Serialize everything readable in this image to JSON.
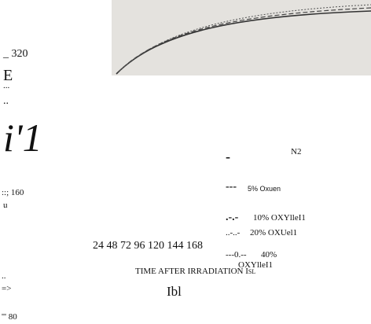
{
  "left_axis": [
    "_ 320",
    "E",
    "...",
    "..",
    "i'1",
    "::; 160",
    "u",
    "..",
    "=>",
    "''' 80"
  ],
  "x_ticks": "24 48 72 96 120 144 168",
  "x_label": "TIME AFTER IRRADIATION Isl",
  "panel": "Ibl",
  "legend": [
    {
      "symbol": "-",
      "label": "N2"
    },
    {
      "symbol": "---",
      "label": "5% Oxuen"
    },
    {
      "symbol": ".-.-",
      "label": "10% OXYlleI1"
    },
    {
      "symbol": "..-..-",
      "label": "20% OXUel1"
    },
    {
      "symbol": "---0.--",
      "label": "40%"
    }
  ],
  "legend_extra": "OXYlleI1"
}
